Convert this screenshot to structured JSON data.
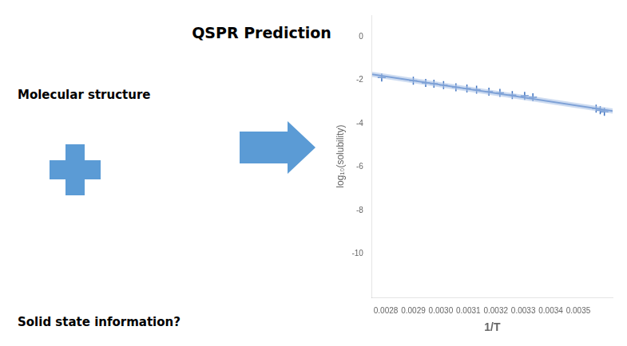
{
  "chart_data": {
    "type": "scatter",
    "title": "QSPR Prediction",
    "annotations": [
      "Molecular structure",
      "Solid state information?"
    ],
    "xlabel": "1/T",
    "ylabel": "log₁₀(solubility)",
    "xlim": [
      0.00275,
      0.003625
    ],
    "ylim": [
      -12,
      1
    ],
    "xticks": [
      0.0028,
      0.0029,
      {
        "value": 0.003,
        "label": "0.0030"
      },
      0.0031,
      0.0032,
      0.0033,
      0.0034,
      0.0035
    ],
    "yticks": [
      0,
      -2,
      -4,
      -6,
      -8,
      -10
    ],
    "grid": false,
    "series": [
      {
        "type": "area",
        "color": "#aec4e8",
        "x": [
          0.00275,
          0.003625
        ],
        "lower": [
          -1.8416,
          -3.5328
        ],
        "upper": [
          -1.6016,
          -3.2928
        ]
      },
      {
        "type": "line",
        "color": "#3a6fbe",
        "x": [
          0.00275,
          0.003625
        ],
        "values": [
          -1.7216,
          -3.4128
        ]
      },
      {
        "type": "scatter",
        "color": "#3a6fbe",
        "marker": "+",
        "x": [
          0.002785,
          0.0029,
          0.002945,
          0.002975,
          0.00301,
          0.003055,
          0.003095,
          0.00313,
          0.003175,
          0.003215,
          0.00326,
          0.003305,
          0.003335,
          0.003565,
          0.00358,
          0.003595
        ],
        "values": [
          -1.87,
          -2.02,
          -2.12,
          -2.16,
          -2.22,
          -2.32,
          -2.38,
          -2.43,
          -2.52,
          -2.58,
          -2.68,
          -2.72,
          -2.78,
          -3.3,
          -3.38,
          -3.45
        ]
      }
    ]
  }
}
